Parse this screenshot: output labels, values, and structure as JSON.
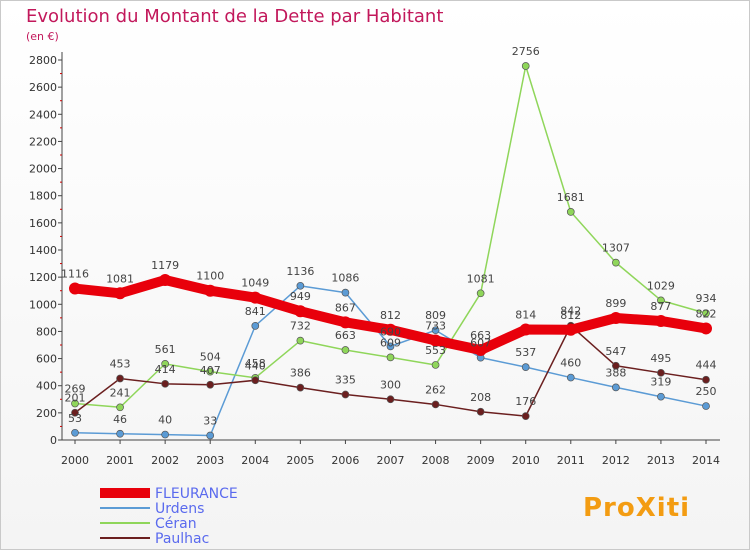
{
  "chart_data": {
    "type": "line",
    "title": "Evolution du Montant de la Dette par Habitant",
    "subtitle": "(en €)",
    "xlabel": "",
    "ylabel": "",
    "ylim": [
      0,
      2800
    ],
    "yticks": [
      0,
      200,
      400,
      600,
      800,
      1000,
      1200,
      1400,
      1600,
      1800,
      2000,
      2200,
      2400,
      2600,
      2800
    ],
    "grid": false,
    "legend": "bottom-left",
    "x": [
      "2000",
      "2001",
      "2002",
      "2003",
      "2004",
      "2005",
      "2006",
      "2007",
      "2008",
      "2009",
      "2010",
      "2011",
      "2012",
      "2013",
      "2014"
    ],
    "series": [
      {
        "name": "FLEURANCE",
        "color": "#e8000b",
        "values": [
          1116,
          1081,
          1179,
          1100,
          1049,
          949,
          867,
          812,
          733,
          663,
          814,
          812,
          899,
          877,
          822
        ]
      },
      {
        "name": "Urdens",
        "color": "#5b9bd5",
        "values": [
          53,
          46,
          40,
          33,
          841,
          1136,
          1086,
          690,
          809,
          607,
          537,
          460,
          388,
          319,
          250
        ]
      },
      {
        "name": "Céran",
        "color": "#8fd65a",
        "values": [
          269,
          241,
          561,
          504,
          458,
          732,
          663,
          609,
          553,
          1081,
          2756,
          1681,
          1307,
          1029,
          934
        ]
      },
      {
        "name": "Paulhac",
        "color": "#6b1f1f",
        "values": [
          201,
          453,
          414,
          407,
          440,
          386,
          335,
          300,
          262,
          208,
          176,
          842,
          547,
          495,
          444
        ]
      }
    ]
  },
  "logo": {
    "text": "ProXiti"
  }
}
